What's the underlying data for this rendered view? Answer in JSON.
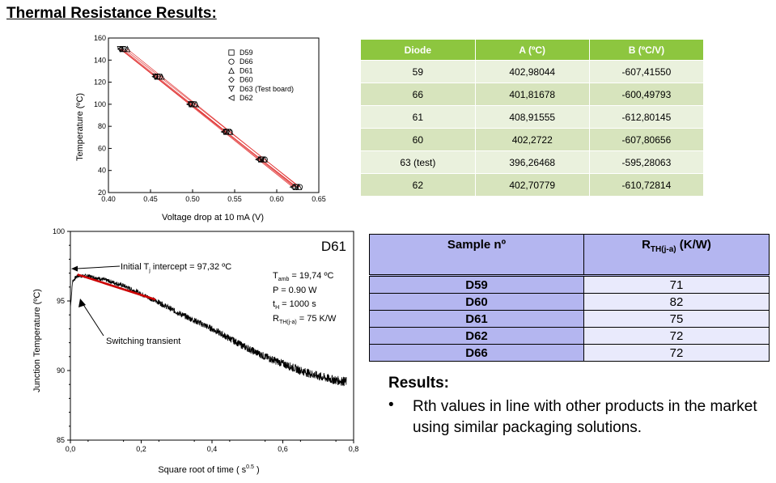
{
  "page_title": "Thermal Resistance Results:",
  "chart_data": [
    {
      "type": "scatter",
      "title": "",
      "xlabel": "Voltage drop at 10 mA (V)",
      "ylabel": "Temperature (ºC)",
      "xlim": [
        0.4,
        0.65
      ],
      "ylim": [
        20,
        160
      ],
      "xticks": [
        "0.40",
        "0.45",
        "0.50",
        "0.55",
        "0.60",
        "0.65"
      ],
      "yticks": [
        "20",
        "40",
        "60",
        "80",
        "100",
        "120",
        "140",
        "160"
      ],
      "legend_placement": "top-right",
      "grid": false,
      "series": [
        {
          "name": "D59",
          "marker": "square",
          "x": [
            0.6224,
            0.5813,
            0.54,
            0.4989,
            0.4579,
            0.4167
          ],
          "y": [
            25,
            50,
            75,
            100,
            125,
            150
          ]
        },
        {
          "name": "D66",
          "marker": "circle",
          "x": [
            0.6274,
            0.5858,
            0.5442,
            0.5026,
            0.4609,
            0.4193
          ],
          "y": [
            25,
            50,
            75,
            100,
            125,
            150
          ]
        },
        {
          "name": "D61",
          "marker": "triangle-up",
          "x": [
            0.6265,
            0.5857,
            0.5449,
            0.5041,
            0.4633,
            0.4225
          ],
          "y": [
            25,
            50,
            75,
            100,
            125,
            150
          ]
        },
        {
          "name": "D60",
          "marker": "diamond",
          "x": [
            0.6208,
            0.5797,
            0.5385,
            0.4974,
            0.4562,
            0.4151
          ],
          "y": [
            25,
            50,
            75,
            100,
            125,
            150
          ]
        },
        {
          "name": "D63 (Test board)",
          "marker": "triangle-down",
          "x": [
            0.6237,
            0.5817,
            0.5397,
            0.4978,
            0.4558,
            0.4138
          ],
          "y": [
            25,
            50,
            75,
            100,
            125,
            150
          ]
        },
        {
          "name": "D62",
          "marker": "triangle-left",
          "x": [
            0.6189,
            0.578,
            0.5371,
            0.4961,
            0.4552,
            0.4142
          ],
          "y": [
            25,
            50,
            75,
            100,
            125,
            150
          ]
        }
      ]
    },
    {
      "type": "line",
      "title": "D61",
      "xlabel": "Square root of time ( s",
      "xlabel_sup": "0.5",
      "xlabel_end": " )",
      "ylabel": "Junction Temperature (ºC)",
      "xlim": [
        0.0,
        0.8
      ],
      "ylim": [
        85,
        100
      ],
      "xticks": [
        "0,0",
        "0,2",
        "0,4",
        "0,6",
        "0,8"
      ],
      "yticks": [
        "85",
        "90",
        "95",
        "100"
      ],
      "series": [
        {
          "name": "",
          "x": [
            0.0,
            0.006,
            0.012,
            0.02,
            0.05,
            0.1,
            0.15,
            0.2,
            0.25,
            0.3,
            0.35,
            0.4,
            0.45,
            0.5,
            0.55,
            0.6,
            0.65,
            0.7,
            0.75,
            0.78
          ],
          "y": [
            94.5,
            96.4,
            96.6,
            96.8,
            96.8,
            96.5,
            96.1,
            95.5,
            94.9,
            94.2,
            93.6,
            93.0,
            92.3,
            91.6,
            91.0,
            90.5,
            90.0,
            89.6,
            89.3,
            89.2
          ]
        }
      ],
      "fit_line": {
        "x": [
          0.02,
          0.24
        ],
        "y": [
          96.9,
          95.1
        ],
        "color": "#cc0000"
      },
      "annotations": {
        "intercept_prefix": "Initial T",
        "intercept_sub": "j",
        "intercept_suffix": " intercept = 97,32 ºC",
        "intercept_value": 97.32,
        "switching": "Switching transient"
      },
      "params": {
        "tamb_prefix": "T",
        "tamb_sub": "amb",
        "tamb_suffix": " = 19,74 ºC",
        "power": "P = 0.90 W",
        "th_prefix": "t",
        "th_sub": "H",
        "th_suffix": " = 1000 s",
        "rth_prefix": "R",
        "rth_sub": "TH(j-a)",
        "rth_suffix": " = 75 K/W"
      }
    }
  ],
  "diode_table": {
    "headers": [
      "Diode",
      "A (ºC)",
      "B (ºC/V)"
    ],
    "rows": [
      [
        "59",
        "402,98044",
        "-607,41550"
      ],
      [
        "66",
        "401,81678",
        "-600,49793"
      ],
      [
        "61",
        "408,91555",
        "-612,80145"
      ],
      [
        "60",
        "402,2722",
        "-607,80656"
      ],
      [
        "63 (test)",
        "396,26468",
        "-595,28063"
      ],
      [
        "62",
        "402,70779",
        "-610,72814"
      ]
    ],
    "header_color": "#8dc63f"
  },
  "rth_table": {
    "header_sample": "Sample nº",
    "header_rth_prefix": "R",
    "header_rth_sub": "TH(j-a)",
    "header_rth_suffix": " (K/W)",
    "rows": [
      [
        "D59",
        "71"
      ],
      [
        "D60",
        "82"
      ],
      [
        "D61",
        "75"
      ],
      [
        "D62",
        "72"
      ],
      [
        "D66",
        "72"
      ]
    ]
  },
  "results": {
    "title": "Results:",
    "bullet": "•",
    "text": "Rth values in line with other products in the market using similar packaging solutions."
  }
}
